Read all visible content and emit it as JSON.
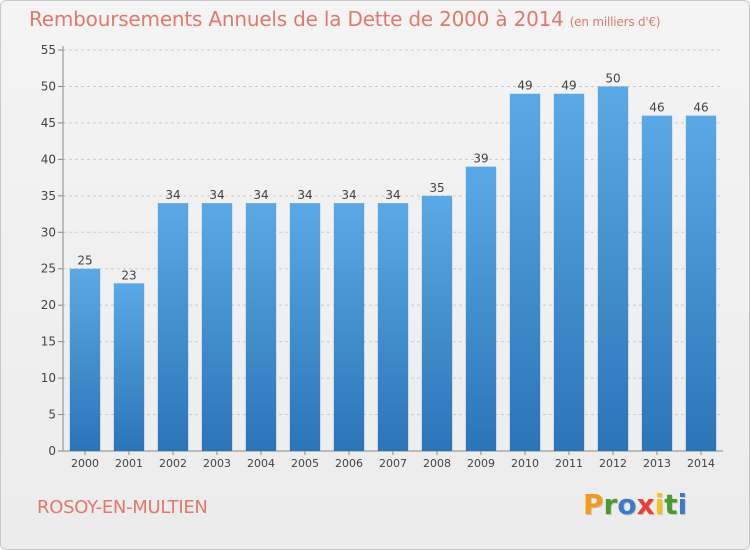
{
  "header": {
    "title": "Remboursements Annuels de la Dette de 2000 à 2014",
    "unit": "(en milliers d'€)"
  },
  "footer": {
    "commune": "ROSOY-EN-MULTIEN",
    "logo": "Proxiti",
    "logo_colors": [
      "#f29a1f",
      "#4a9a2e",
      "#3f79c9",
      "#e8413a",
      "#f2c21f",
      "#4a9a2e",
      "#3f79c9"
    ]
  },
  "colors": {
    "bar_top": "#5aa9e6",
    "bar_bottom": "#2b75b6",
    "grid": "#cccccc",
    "text": "#444444",
    "accent": "#e07a6c"
  },
  "chart_data": {
    "type": "bar",
    "title": "Remboursements Annuels de la Dette de 2000 à 2014",
    "subtitle": "(en milliers d'€)",
    "categories": [
      "2000",
      "2001",
      "2002",
      "2003",
      "2004",
      "2005",
      "2006",
      "2007",
      "2008",
      "2009",
      "2010",
      "2011",
      "2012",
      "2013",
      "2014"
    ],
    "values": [
      25,
      23,
      34,
      34,
      34,
      34,
      34,
      34,
      35,
      39,
      49,
      49,
      50,
      46,
      46
    ],
    "ylim": [
      0,
      55
    ],
    "yticks": [
      0,
      5,
      10,
      15,
      20,
      25,
      30,
      35,
      40,
      45,
      50,
      55
    ],
    "grid": "horizontal-dashed",
    "legend": "none"
  }
}
